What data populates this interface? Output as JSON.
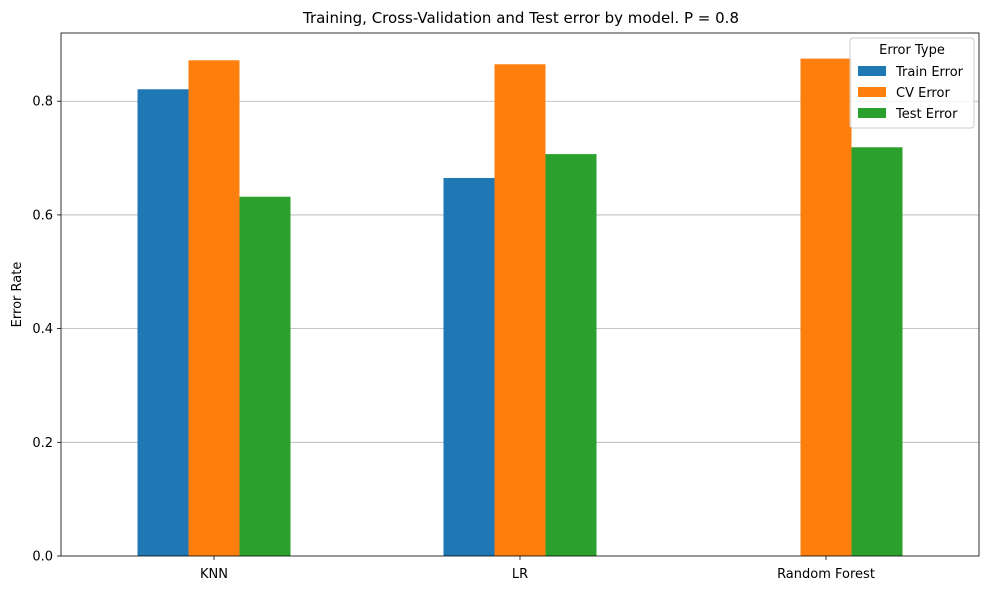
{
  "chart_data": {
    "type": "bar",
    "title": "Training, Cross-Validation and Test error by model. P = 0.8",
    "xlabel": "",
    "ylabel": "Error Rate",
    "categories": [
      "KNN",
      "LR",
      "Random Forest"
    ],
    "series": [
      {
        "name": "Train Error",
        "color": "#1f77b4",
        "values": [
          0.821,
          0.665,
          0.0
        ]
      },
      {
        "name": "CV Error",
        "color": "#ff7f0e",
        "values": [
          0.872,
          0.865,
          0.875
        ]
      },
      {
        "name": "Test Error",
        "color": "#2ca02c",
        "values": [
          0.632,
          0.707,
          0.719
        ]
      }
    ],
    "ylim": [
      0,
      0.92
    ],
    "yticks": [
      0.0,
      0.2,
      0.4,
      0.6,
      0.8
    ],
    "ytick_labels": [
      "0.0",
      "0.2",
      "0.4",
      "0.6",
      "0.8"
    ],
    "grid": "y",
    "legend": {
      "title": "Error Type",
      "placement": "top-right"
    }
  }
}
